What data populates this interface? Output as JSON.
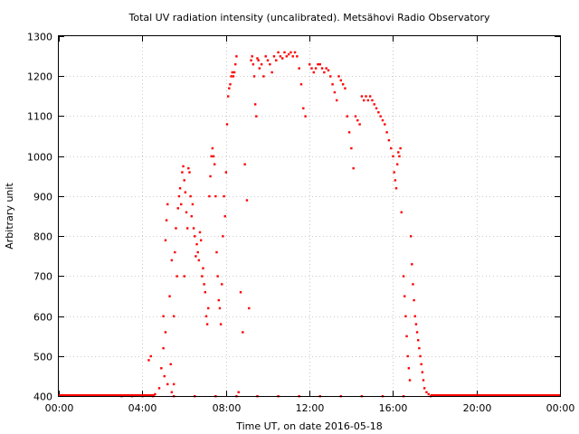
{
  "chart_data": {
    "type": "scatter",
    "title": "Total UV radiation intensity (uncalibrated). Metsähovi Radio Observatory",
    "xlabel": "Time UT, on date 2016-05-18",
    "ylabel": "Arbitrary unit",
    "xlim": [
      0,
      24
    ],
    "ylim": [
      400,
      1300
    ],
    "x_ticks": [
      {
        "value": 0,
        "label": "00:00"
      },
      {
        "value": 4,
        "label": "04:00"
      },
      {
        "value": 8,
        "label": "08:00"
      },
      {
        "value": 12,
        "label": "12:00"
      },
      {
        "value": 16,
        "label": "16:00"
      },
      {
        "value": 20,
        "label": "20:00"
      },
      {
        "value": 24,
        "label": "00:00"
      }
    ],
    "y_ticks": [
      400,
      500,
      600,
      700,
      800,
      900,
      1000,
      1100,
      1200,
      1300
    ],
    "grid": true,
    "marker_color": "#ff0000",
    "series": [
      {
        "x_unit": "hours UT",
        "points": [
          [
            4.3,
            490
          ],
          [
            4.4,
            500
          ],
          [
            4.6,
            405
          ],
          [
            4.8,
            420
          ],
          [
            4.9,
            470
          ],
          [
            5.0,
            520
          ],
          [
            5.0,
            600
          ],
          [
            5.05,
            450
          ],
          [
            5.1,
            560
          ],
          [
            5.1,
            790
          ],
          [
            5.15,
            840
          ],
          [
            5.2,
            880
          ],
          [
            5.2,
            430
          ],
          [
            5.3,
            650
          ],
          [
            5.35,
            480
          ],
          [
            5.4,
            740
          ],
          [
            5.4,
            410
          ],
          [
            5.5,
            600
          ],
          [
            5.5,
            430
          ],
          [
            5.55,
            760
          ],
          [
            5.6,
            820
          ],
          [
            5.65,
            700
          ],
          [
            5.7,
            870
          ],
          [
            5.75,
            900
          ],
          [
            5.8,
            920
          ],
          [
            5.85,
            880
          ],
          [
            5.9,
            960
          ],
          [
            5.95,
            975
          ],
          [
            6.0,
            940
          ],
          [
            6.0,
            700
          ],
          [
            6.05,
            910
          ],
          [
            6.1,
            860
          ],
          [
            6.15,
            820
          ],
          [
            6.2,
            970
          ],
          [
            6.25,
            960
          ],
          [
            6.3,
            900
          ],
          [
            6.35,
            850
          ],
          [
            6.4,
            880
          ],
          [
            6.45,
            820
          ],
          [
            6.5,
            800
          ],
          [
            6.55,
            750
          ],
          [
            6.6,
            780
          ],
          [
            6.65,
            760
          ],
          [
            6.7,
            740
          ],
          [
            6.75,
            810
          ],
          [
            6.8,
            790
          ],
          [
            6.85,
            700
          ],
          [
            6.9,
            720
          ],
          [
            6.95,
            680
          ],
          [
            7.0,
            660
          ],
          [
            7.05,
            600
          ],
          [
            7.1,
            580
          ],
          [
            7.15,
            620
          ],
          [
            7.2,
            900
          ],
          [
            7.25,
            950
          ],
          [
            7.3,
            1000
          ],
          [
            7.35,
            1020
          ],
          [
            7.4,
            1000
          ],
          [
            7.45,
            980
          ],
          [
            7.5,
            900
          ],
          [
            7.55,
            760
          ],
          [
            7.6,
            700
          ],
          [
            7.65,
            640
          ],
          [
            7.7,
            620
          ],
          [
            7.75,
            580
          ],
          [
            7.8,
            680
          ],
          [
            7.85,
            800
          ],
          [
            7.9,
            900
          ],
          [
            7.95,
            850
          ],
          [
            8.0,
            960
          ],
          [
            8.05,
            1080
          ],
          [
            8.1,
            1150
          ],
          [
            8.15,
            1170
          ],
          [
            8.2,
            1180
          ],
          [
            8.25,
            1200
          ],
          [
            8.3,
            1210
          ],
          [
            8.35,
            1200
          ],
          [
            8.4,
            1210
          ],
          [
            8.45,
            1230
          ],
          [
            8.5,
            1250
          ],
          [
            8.6,
            410
          ],
          [
            8.7,
            660
          ],
          [
            8.8,
            560
          ],
          [
            8.9,
            980
          ],
          [
            9.0,
            890
          ],
          [
            9.1,
            620
          ],
          [
            9.2,
            1240
          ],
          [
            9.25,
            1250
          ],
          [
            9.3,
            1230
          ],
          [
            9.35,
            1200
          ],
          [
            9.4,
            1130
          ],
          [
            9.45,
            1100
          ],
          [
            9.5,
            1245
          ],
          [
            9.55,
            1240
          ],
          [
            9.6,
            1220
          ],
          [
            9.7,
            1230
          ],
          [
            9.8,
            1200
          ],
          [
            9.9,
            1250
          ],
          [
            10.0,
            1240
          ],
          [
            10.1,
            1230
          ],
          [
            10.2,
            1210
          ],
          [
            10.3,
            1250
          ],
          [
            10.4,
            1240
          ],
          [
            10.5,
            1260
          ],
          [
            10.6,
            1250
          ],
          [
            10.7,
            1245
          ],
          [
            10.8,
            1260
          ],
          [
            10.9,
            1250
          ],
          [
            11.0,
            1255
          ],
          [
            11.1,
            1260
          ],
          [
            11.2,
            1250
          ],
          [
            11.3,
            1260
          ],
          [
            11.4,
            1250
          ],
          [
            11.5,
            1220
          ],
          [
            11.6,
            1180
          ],
          [
            11.7,
            1120
          ],
          [
            11.8,
            1100
          ],
          [
            12.0,
            1230
          ],
          [
            12.1,
            1220
          ],
          [
            12.2,
            1210
          ],
          [
            12.3,
            1220
          ],
          [
            12.4,
            1230
          ],
          [
            12.5,
            1230
          ],
          [
            12.6,
            1220
          ],
          [
            12.7,
            1210
          ],
          [
            12.8,
            1220
          ],
          [
            12.9,
            1215
          ],
          [
            13.0,
            1200
          ],
          [
            13.1,
            1180
          ],
          [
            13.2,
            1160
          ],
          [
            13.3,
            1140
          ],
          [
            13.4,
            1200
          ],
          [
            13.5,
            1190
          ],
          [
            13.6,
            1180
          ],
          [
            13.7,
            1170
          ],
          [
            13.8,
            1100
          ],
          [
            13.9,
            1060
          ],
          [
            14.0,
            1020
          ],
          [
            14.1,
            970
          ],
          [
            14.2,
            1100
          ],
          [
            14.3,
            1090
          ],
          [
            14.4,
            1080
          ],
          [
            14.5,
            1150
          ],
          [
            14.6,
            1140
          ],
          [
            14.7,
            1150
          ],
          [
            14.8,
            1140
          ],
          [
            14.9,
            1150
          ],
          [
            15.0,
            1140
          ],
          [
            15.1,
            1130
          ],
          [
            15.2,
            1120
          ],
          [
            15.3,
            1110
          ],
          [
            15.4,
            1100
          ],
          [
            15.5,
            1090
          ],
          [
            15.6,
            1080
          ],
          [
            15.7,
            1060
          ],
          [
            15.8,
            1040
          ],
          [
            15.9,
            1020
          ],
          [
            16.0,
            1000
          ],
          [
            16.05,
            960
          ],
          [
            16.1,
            940
          ],
          [
            16.15,
            920
          ],
          [
            16.2,
            980
          ],
          [
            16.25,
            1010
          ],
          [
            16.3,
            1000
          ],
          [
            16.35,
            1020
          ],
          [
            16.4,
            860
          ],
          [
            16.5,
            700
          ],
          [
            16.55,
            650
          ],
          [
            16.6,
            600
          ],
          [
            16.65,
            550
          ],
          [
            16.7,
            500
          ],
          [
            16.75,
            470
          ],
          [
            16.8,
            440
          ],
          [
            16.85,
            800
          ],
          [
            16.9,
            730
          ],
          [
            16.95,
            680
          ],
          [
            17.0,
            640
          ],
          [
            17.05,
            600
          ],
          [
            17.1,
            580
          ],
          [
            17.15,
            560
          ],
          [
            17.2,
            540
          ],
          [
            17.25,
            520
          ],
          [
            17.3,
            500
          ],
          [
            17.35,
            480
          ],
          [
            17.4,
            460
          ],
          [
            17.45,
            440
          ],
          [
            17.5,
            420
          ],
          [
            17.6,
            410
          ],
          [
            17.7,
            405
          ],
          [
            3.0,
            400
          ],
          [
            3.5,
            400
          ],
          [
            4.0,
            400
          ],
          [
            4.5,
            400
          ],
          [
            5.5,
            400
          ],
          [
            6.5,
            400
          ],
          [
            7.5,
            400
          ],
          [
            8.5,
            400
          ],
          [
            9.5,
            400
          ],
          [
            10.5,
            400
          ],
          [
            11.5,
            400
          ],
          [
            12.5,
            400
          ],
          [
            13.5,
            400
          ],
          [
            14.5,
            400
          ],
          [
            15.5,
            400
          ],
          [
            16.5,
            400
          ],
          [
            17.8,
            400
          ]
        ]
      }
    ]
  }
}
